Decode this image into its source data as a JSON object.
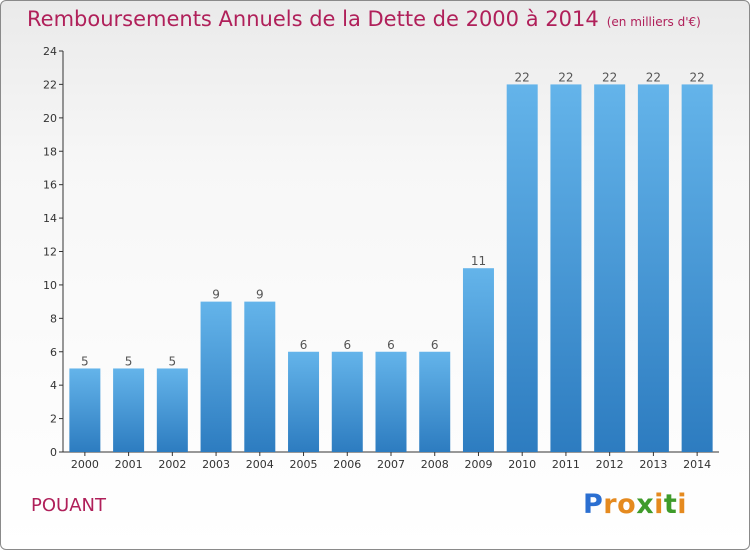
{
  "title": "Remboursements Annuels de la Dette de 2000 à 2014",
  "subtitle": "(en milliers d'€)",
  "commune": "POUANT",
  "logo": {
    "text": "Proxiti"
  },
  "colors": {
    "title": "#b0205a",
    "bar_top": "#64b4ea",
    "bar_bottom": "#2d7cc0"
  },
  "chart_data": {
    "type": "bar",
    "title": "Remboursements Annuels de la Dette de 2000 à 2014",
    "xlabel": "",
    "ylabel": "",
    "categories": [
      "2000",
      "2001",
      "2002",
      "2003",
      "2004",
      "2005",
      "2006",
      "2007",
      "2008",
      "2009",
      "2010",
      "2011",
      "2012",
      "2013",
      "2014"
    ],
    "values": [
      5,
      5,
      5,
      9,
      9,
      6,
      6,
      6,
      6,
      11,
      22,
      22,
      22,
      22,
      22
    ],
    "ylim": [
      0,
      24
    ],
    "yticks": [
      0,
      2,
      4,
      6,
      8,
      10,
      12,
      14,
      16,
      18,
      20,
      22,
      24
    ],
    "grid": false,
    "data_labels": true
  }
}
